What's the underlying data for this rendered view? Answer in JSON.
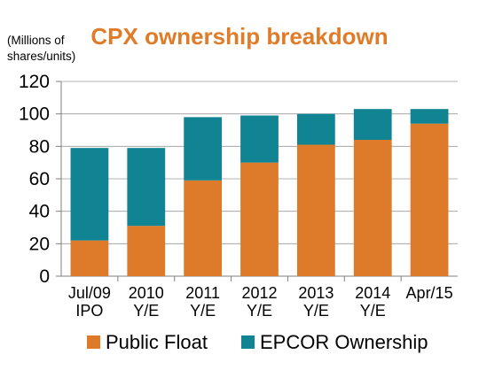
{
  "chart_data": {
    "type": "bar",
    "stacked": true,
    "title": "CPX ownership breakdown",
    "units_label": [
      "(Millions of",
      "shares/units)"
    ],
    "categories": [
      [
        "Jul/09",
        "IPO"
      ],
      [
        "2010",
        "Y/E"
      ],
      [
        "2011",
        "Y/E"
      ],
      [
        "2012",
        "Y/E"
      ],
      [
        "2013",
        "Y/E"
      ],
      [
        "2014",
        "Y/E"
      ],
      [
        "Apr/15",
        ""
      ]
    ],
    "series": [
      {
        "name": "Public Float",
        "color": "#dd7b2b",
        "values": [
          22,
          31,
          59,
          70,
          81,
          84,
          94
        ]
      },
      {
        "name": "EPCOR Ownership",
        "color": "#108493",
        "values": [
          57,
          48,
          39,
          29,
          19,
          19,
          9
        ]
      }
    ],
    "ylim": [
      0,
      120
    ],
    "yticks": [
      0,
      20,
      40,
      60,
      80,
      100,
      120
    ],
    "grid": true,
    "legend_position": "bottom",
    "title_color": "#e07b28"
  }
}
